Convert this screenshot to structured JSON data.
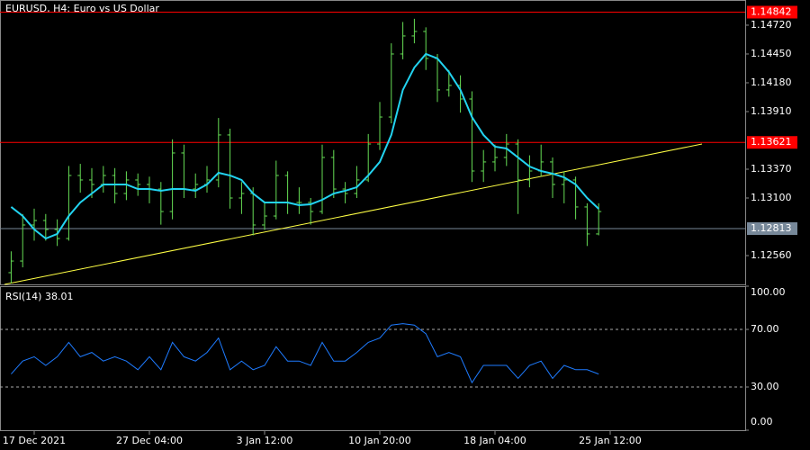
{
  "chart_data": [
    {
      "type": "ohlc",
      "title": "EURUSD, H4:  Euro vs US Dollar",
      "color": "#66dd55",
      "open": [
        1.124,
        1.12509,
        1.12847,
        1.12889,
        1.12805,
        1.1272,
        1.13311,
        1.13269,
        1.13227,
        1.13311,
        1.13142,
        1.13269,
        1.13227,
        1.13184,
        1.12973,
        1.13522,
        1.13184,
        1.13227,
        1.13269,
        1.13691,
        1.131,
        1.13142,
        1.12847,
        1.12931,
        1.13311,
        1.13058,
        1.13058,
        1.12973,
        1.1348,
        1.13184,
        1.13142,
        1.13269,
        1.13606,
        1.13859,
        1.1445,
        1.14619,
        1.14661,
        1.14408,
        1.14113,
        1.14155,
        1.14028,
        1.13353,
        1.13438,
        1.1348,
        1.13606,
        1.13269,
        1.13353,
        1.13438,
        1.13227,
        1.13269,
        1.13016,
        1.12763
      ],
      "high": [
        1.126,
        1.1295,
        1.13,
        1.1295,
        1.129,
        1.134,
        1.1342,
        1.1338,
        1.134,
        1.1338,
        1.1335,
        1.1333,
        1.133,
        1.1325,
        1.1365,
        1.136,
        1.1333,
        1.134,
        1.1385,
        1.1375,
        1.1325,
        1.132,
        1.1305,
        1.1345,
        1.1335,
        1.132,
        1.131,
        1.136,
        1.1355,
        1.1325,
        1.134,
        1.137,
        1.14,
        1.1455,
        1.1475,
        1.1478,
        1.147,
        1.1445,
        1.143,
        1.1425,
        1.141,
        1.1355,
        1.136,
        1.137,
        1.1365,
        1.135,
        1.136,
        1.1348,
        1.1335,
        1.133,
        1.1305,
        1.1305
      ],
      "low": [
        1.123,
        1.1245,
        1.127,
        1.127,
        1.1265,
        1.127,
        1.1315,
        1.131,
        1.1315,
        1.1305,
        1.1308,
        1.1312,
        1.1305,
        1.1285,
        1.129,
        1.131,
        1.131,
        1.1315,
        1.132,
        1.13,
        1.1295,
        1.1275,
        1.128,
        1.129,
        1.1295,
        1.1295,
        1.1285,
        1.1295,
        1.131,
        1.1305,
        1.131,
        1.1325,
        1.1355,
        1.138,
        1.144,
        1.1455,
        1.143,
        1.14,
        1.1405,
        1.139,
        1.1325,
        1.1325,
        1.1335,
        1.134,
        1.1295,
        1.132,
        1.133,
        1.131,
        1.1305,
        1.129,
        1.1265,
        1.1275
      ],
      "close": [
        1.12509,
        1.12847,
        1.12889,
        1.12805,
        1.1272,
        1.13311,
        1.13269,
        1.13227,
        1.13311,
        1.13142,
        1.13269,
        1.13227,
        1.13184,
        1.12973,
        1.13522,
        1.13184,
        1.13227,
        1.13269,
        1.13691,
        1.131,
        1.13142,
        1.12847,
        1.12931,
        1.13311,
        1.13058,
        1.13058,
        1.12973,
        1.1348,
        1.13184,
        1.13142,
        1.13269,
        1.13606,
        1.13859,
        1.1445,
        1.14619,
        1.14661,
        1.14408,
        1.14113,
        1.14155,
        1.14028,
        1.13353,
        1.13438,
        1.1348,
        1.13606,
        1.13269,
        1.13353,
        1.13438,
        1.13227,
        1.13269,
        1.13016,
        1.12763,
        1.12973
      ],
      "series": [
        {
          "color": "#22d3f0",
          "values": [
            1.13016,
            1.12931,
            1.12805,
            1.1272,
            1.12763,
            1.12931,
            1.13058,
            1.13142,
            1.13227,
            1.13227,
            1.13227,
            1.13184,
            1.13184,
            1.13168,
            1.13184,
            1.13184,
            1.13168,
            1.13227,
            1.13336,
            1.13311,
            1.13269,
            1.13142,
            1.13058,
            1.13058,
            1.13058,
            1.13033,
            1.13041,
            1.13083,
            1.13142,
            1.13168,
            1.13201,
            1.13311,
            1.13438,
            1.13691,
            1.14113,
            1.14323,
            1.1445,
            1.14408,
            1.14281,
            1.14113,
            1.13859,
            1.13691,
            1.13581,
            1.13564,
            1.1348,
            1.13395,
            1.13353,
            1.13328,
            1.13294,
            1.13227,
            1.131,
            1.12999
          ]
        }
      ],
      "trendline": {
        "color": "#ffff44",
        "x": [
          -0.58,
          59.97
        ],
        "values": [
          1.1229,
          1.13606
        ]
      },
      "levels": [
        {
          "value": 1.14842,
          "label": "1.14842",
          "color": "#ff0000"
        },
        {
          "value": 1.13621,
          "label": "1.13621",
          "color": "#ff0000"
        },
        {
          "value": 1.12813,
          "label": "1.12813",
          "color": "#778899"
        }
      ],
      "xlim": [
        -0.97,
        63.72
      ],
      "xticks": [
        {
          "value": 2,
          "label": "17 Dec 2021"
        },
        {
          "value": 12,
          "label": "27 Dec 04:00"
        },
        {
          "value": 22,
          "label": "3 Jan 12:00"
        },
        {
          "value": 32,
          "label": "10 Jan 20:00"
        },
        {
          "value": 42,
          "label": "18 Jan 04:00"
        },
        {
          "value": 52,
          "label": "25 Jan 12:00"
        }
      ],
      "ylim": [
        1.1229,
        1.14956
      ],
      "yticks": [
        {
          "value": 1.1472,
          "label": "1.14720"
        },
        {
          "value": 1.1445,
          "label": "1.14450"
        },
        {
          "value": 1.1418,
          "label": "1.14180"
        },
        {
          "value": 1.1391,
          "label": "1.13910"
        },
        {
          "value": 1.1337,
          "label": "1.13370"
        },
        {
          "value": 1.131,
          "label": "1.13100"
        },
        {
          "value": 1.1256,
          "label": "1.12560"
        }
      ]
    },
    {
      "type": "line",
      "title": "RSI(14) 38.01",
      "series": [
        {
          "color": "#1e7bff",
          "values": [
            39,
            48,
            51,
            45,
            51,
            61,
            51,
            54,
            48,
            51,
            48,
            42,
            51,
            42,
            61,
            51,
            48,
            54,
            64,
            42,
            48,
            42,
            45,
            58,
            48,
            48,
            45,
            61,
            48,
            48,
            54,
            61,
            64,
            73,
            74,
            73,
            67,
            51,
            54,
            51,
            33,
            45,
            45,
            45,
            36,
            45,
            48,
            36,
            45,
            42,
            42,
            39
          ]
        }
      ],
      "levels": [
        70,
        30
      ],
      "xlim": [
        -0.97,
        63.72
      ],
      "ylim": [
        0,
        100
      ],
      "yticks": [
        {
          "value": 100,
          "label": "100.00"
        },
        {
          "value": 70,
          "label": "70.00"
        },
        {
          "value": 30,
          "label": "30.00"
        },
        {
          "value": 0,
          "label": "0.00"
        }
      ]
    }
  ]
}
